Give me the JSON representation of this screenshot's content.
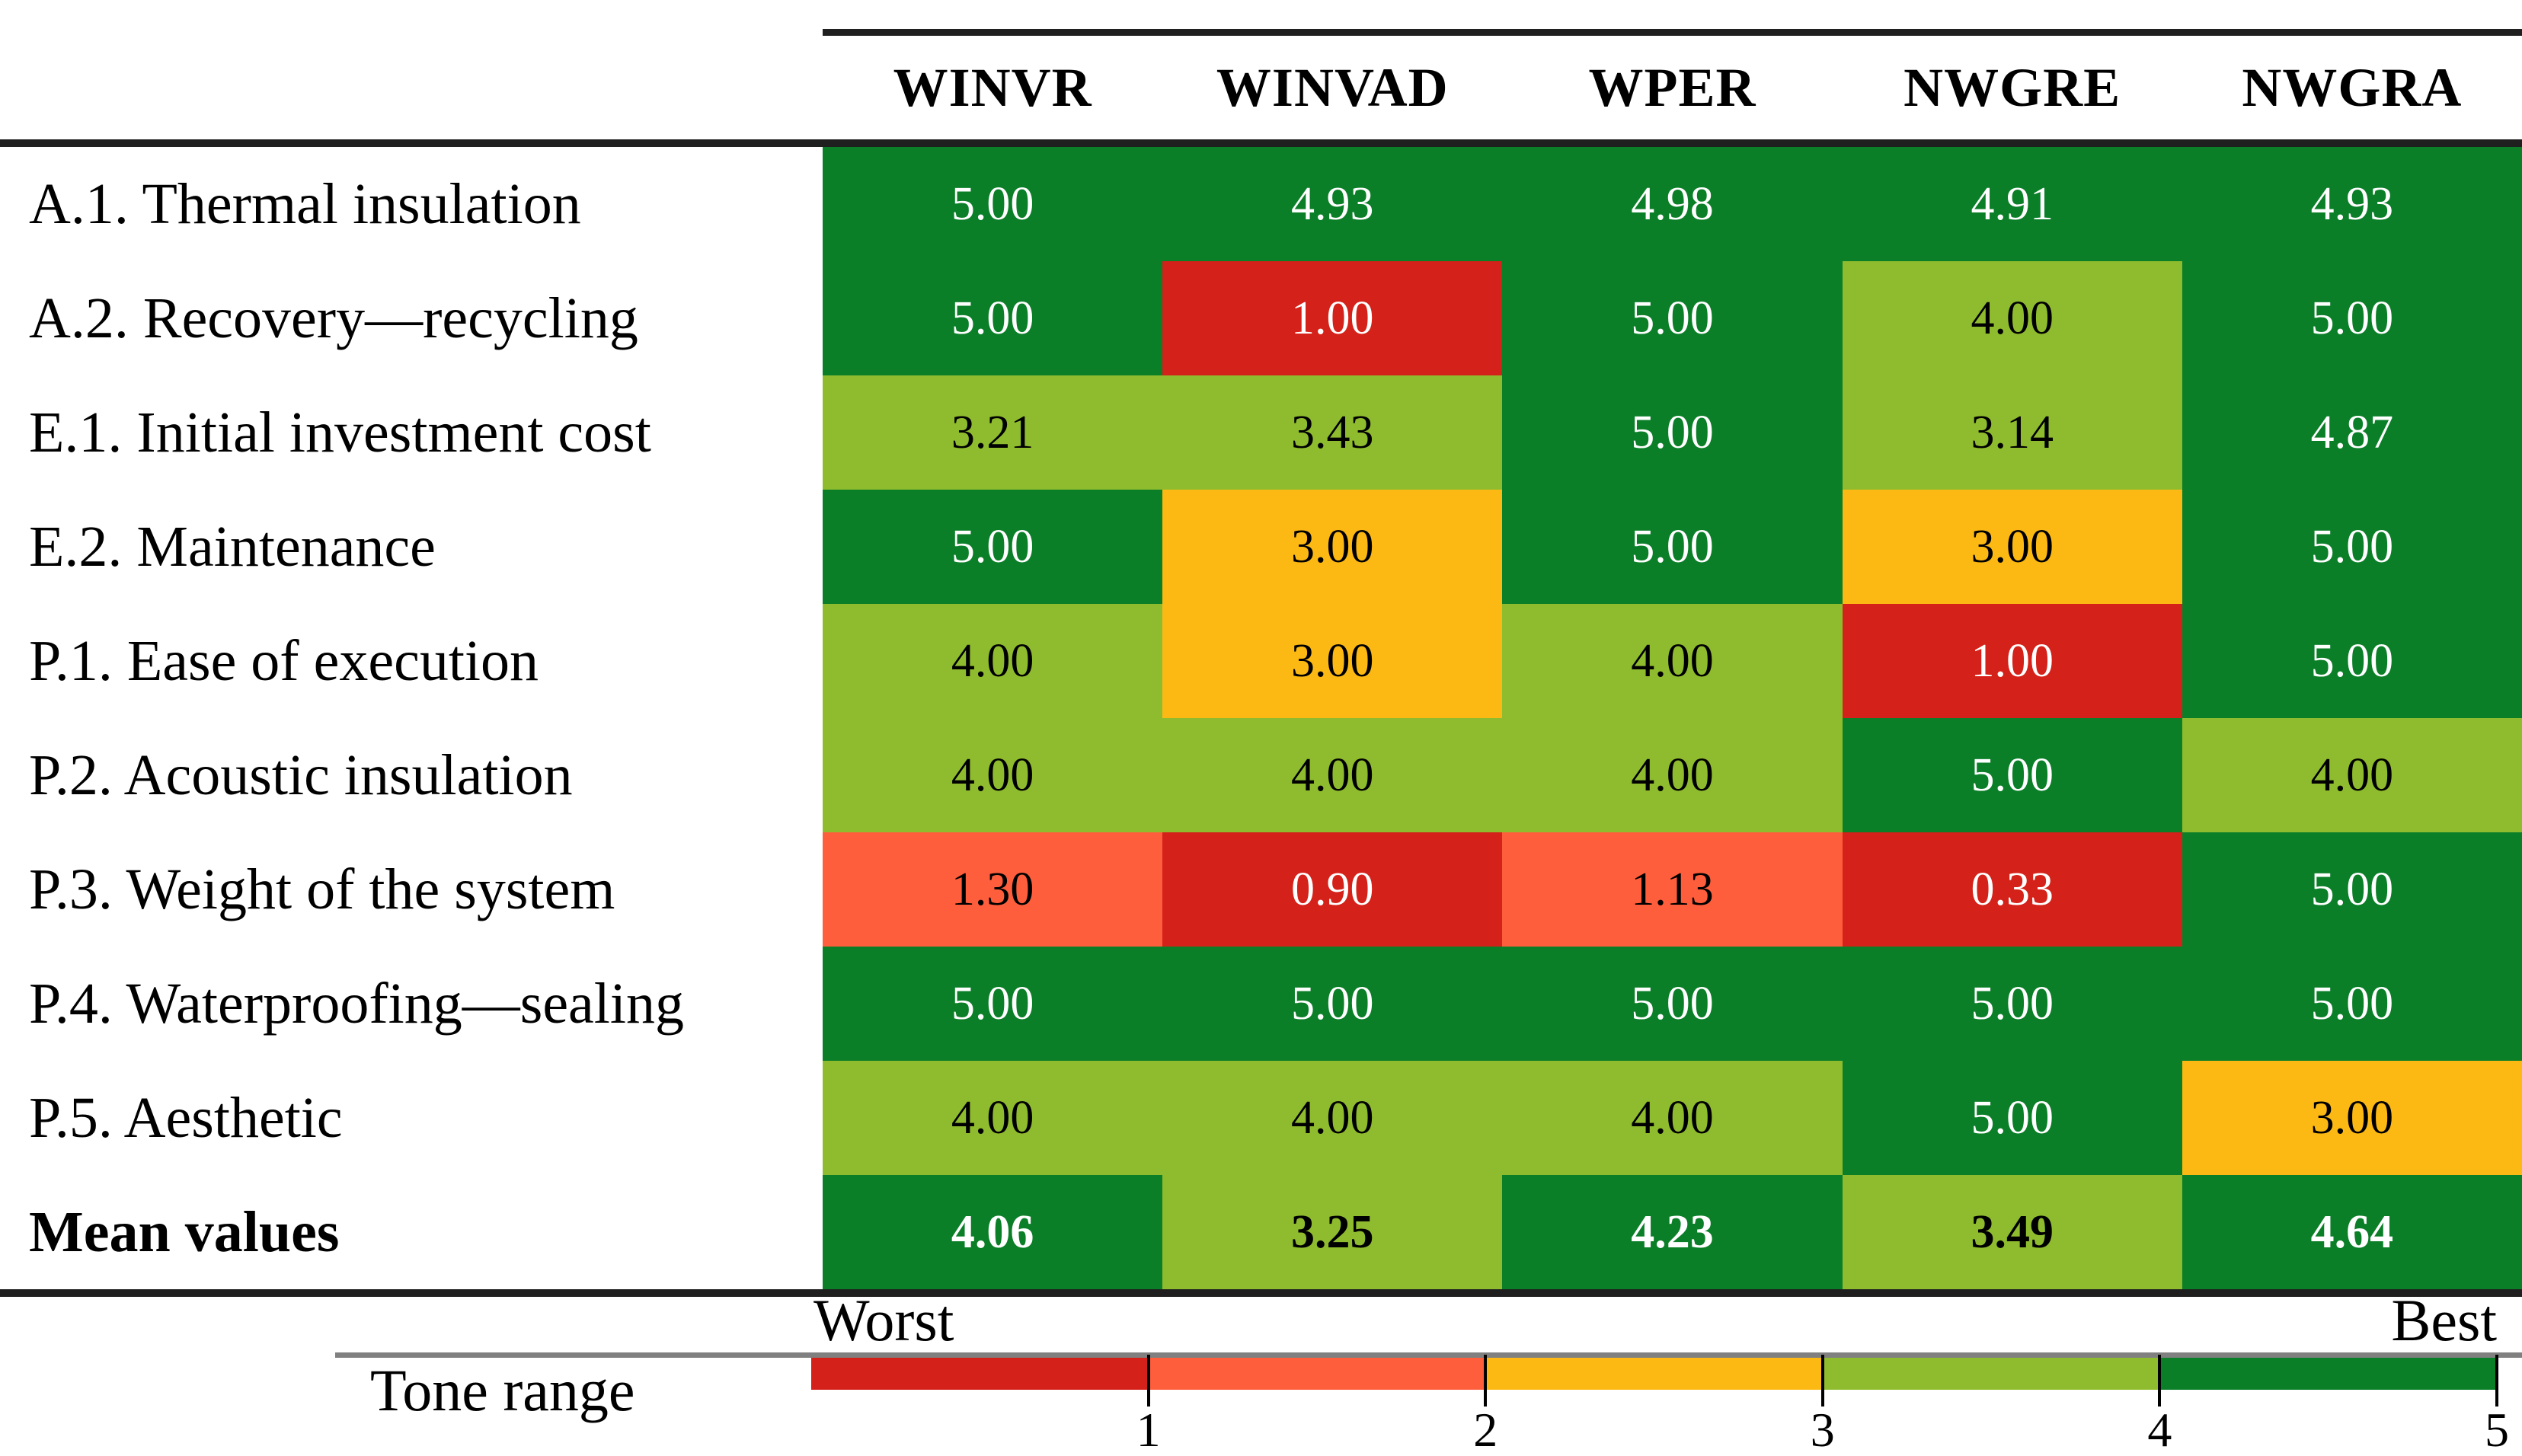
{
  "figure": {
    "columns": [
      "WINVR",
      "WINVAD",
      "WPER",
      "NWGRE",
      "NWGRA"
    ],
    "rows": [
      {
        "label": "A.1. Thermal insulation",
        "bold": false,
        "cells": [
          {
            "v": "5.00",
            "tone": "g5"
          },
          {
            "v": "4.93",
            "tone": "g5"
          },
          {
            "v": "4.98",
            "tone": "g5"
          },
          {
            "v": "4.91",
            "tone": "g5"
          },
          {
            "v": "4.93",
            "tone": "g5"
          }
        ]
      },
      {
        "label": "A.2. Recovery—recycling",
        "bold": false,
        "cells": [
          {
            "v": "5.00",
            "tone": "g5"
          },
          {
            "v": "1.00",
            "tone": "r1"
          },
          {
            "v": "5.00",
            "tone": "g5"
          },
          {
            "v": "4.00",
            "tone": "g4"
          },
          {
            "v": "5.00",
            "tone": "g5"
          }
        ]
      },
      {
        "label": "E.1. Initial investment cost",
        "bold": false,
        "cells": [
          {
            "v": "3.21",
            "tone": "g4"
          },
          {
            "v": "3.43",
            "tone": "g4"
          },
          {
            "v": "5.00",
            "tone": "g5"
          },
          {
            "v": "3.14",
            "tone": "g4"
          },
          {
            "v": "4.87",
            "tone": "g5"
          }
        ]
      },
      {
        "label": "E.2. Maintenance",
        "bold": false,
        "cells": [
          {
            "v": "5.00",
            "tone": "g5"
          },
          {
            "v": "3.00",
            "tone": "y3"
          },
          {
            "v": "5.00",
            "tone": "g5"
          },
          {
            "v": "3.00",
            "tone": "y3"
          },
          {
            "v": "5.00",
            "tone": "g5"
          }
        ]
      },
      {
        "label": "P.1. Ease of execution",
        "bold": false,
        "cells": [
          {
            "v": "4.00",
            "tone": "g4"
          },
          {
            "v": "3.00",
            "tone": "y3"
          },
          {
            "v": "4.00",
            "tone": "g4"
          },
          {
            "v": "1.00",
            "tone": "r1"
          },
          {
            "v": "5.00",
            "tone": "g5"
          }
        ]
      },
      {
        "label": "P.2. Acoustic insulation",
        "bold": false,
        "cells": [
          {
            "v": "4.00",
            "tone": "g4"
          },
          {
            "v": "4.00",
            "tone": "g4"
          },
          {
            "v": "4.00",
            "tone": "g4"
          },
          {
            "v": "5.00",
            "tone": "g5"
          },
          {
            "v": "4.00",
            "tone": "g4"
          }
        ]
      },
      {
        "label": "P.3. Weight of the system",
        "bold": false,
        "cells": [
          {
            "v": "1.30",
            "tone": "o2"
          },
          {
            "v": "0.90",
            "tone": "r1"
          },
          {
            "v": "1.13",
            "tone": "o2"
          },
          {
            "v": "0.33",
            "tone": "r1"
          },
          {
            "v": "5.00",
            "tone": "g5"
          }
        ]
      },
      {
        "label": "P.4. Waterproofing—sealing",
        "bold": false,
        "cells": [
          {
            "v": "5.00",
            "tone": "g5"
          },
          {
            "v": "5.00",
            "tone": "g5"
          },
          {
            "v": "5.00",
            "tone": "g5"
          },
          {
            "v": "5.00",
            "tone": "g5"
          },
          {
            "v": "5.00",
            "tone": "g5"
          }
        ]
      },
      {
        "label": "P.5. Aesthetic",
        "bold": false,
        "cells": [
          {
            "v": "4.00",
            "tone": "g4"
          },
          {
            "v": "4.00",
            "tone": "g4"
          },
          {
            "v": "4.00",
            "tone": "g4"
          },
          {
            "v": "5.00",
            "tone": "g5"
          },
          {
            "v": "3.00",
            "tone": "y3"
          }
        ]
      },
      {
        "label": "Mean values",
        "bold": true,
        "cells": [
          {
            "v": "4.06",
            "tone": "g5"
          },
          {
            "v": "3.25",
            "tone": "g4"
          },
          {
            "v": "4.23",
            "tone": "g5"
          },
          {
            "v": "3.49",
            "tone": "g4"
          },
          {
            "v": "4.64",
            "tone": "g5"
          }
        ]
      }
    ]
  },
  "legend": {
    "title": "Tone range",
    "worst_label": "Worst",
    "best_label": "Best",
    "ticks": [
      "1",
      "2",
      "3",
      "4",
      "5"
    ],
    "segment_tones": [
      "r1",
      "o2",
      "y3",
      "g4",
      "g5"
    ]
  },
  "colors": {
    "r1": "#d42119",
    "o2": "#ff5e3c",
    "y3": "#fdb913",
    "g4": "#8fbc2e",
    "g5": "#0b7e28",
    "text_on_dark": "#ffffff",
    "text_on_light": "#000000",
    "rule": "#1f1f1f",
    "legend_line": "#808080"
  },
  "chart_data": {
    "type": "heatmap",
    "title": "",
    "columns": [
      "WINVR",
      "WINVAD",
      "WPER",
      "NWGRE",
      "NWGRA"
    ],
    "rows": [
      "A.1. Thermal insulation",
      "A.2. Recovery—recycling",
      "E.1. Initial investment cost",
      "E.2. Maintenance",
      "P.1. Ease of execution",
      "P.2. Acoustic insulation",
      "P.3. Weight of the system",
      "P.4. Waterproofing—sealing",
      "P.5. Aesthetic",
      "Mean values"
    ],
    "values": [
      [
        5.0,
        4.93,
        4.98,
        4.91,
        4.93
      ],
      [
        5.0,
        1.0,
        5.0,
        4.0,
        5.0
      ],
      [
        3.21,
        3.43,
        5.0,
        3.14,
        4.87
      ],
      [
        5.0,
        3.0,
        5.0,
        3.0,
        5.0
      ],
      [
        4.0,
        3.0,
        4.0,
        1.0,
        5.0
      ],
      [
        4.0,
        4.0,
        4.0,
        5.0,
        4.0
      ],
      [
        1.3,
        0.9,
        1.13,
        0.33,
        5.0
      ],
      [
        5.0,
        5.0,
        5.0,
        5.0,
        5.0
      ],
      [
        4.0,
        4.0,
        4.0,
        5.0,
        3.0
      ],
      [
        4.06,
        3.25,
        4.23,
        3.49,
        4.64
      ]
    ],
    "color_scale": {
      "min": 0,
      "max": 5,
      "ticks": [
        1,
        2,
        3,
        4,
        5
      ],
      "worst_end": "Worst",
      "best_end": "Best",
      "legend_title": "Tone range",
      "bins": {
        "0-1": "#d42119",
        "1-2": "#ff5e3c",
        "2-3": "#fdb913",
        "3-4": "#8fbc2e",
        "4-5": "#0b7e28"
      }
    },
    "legend_position": "bottom",
    "grid": false
  }
}
